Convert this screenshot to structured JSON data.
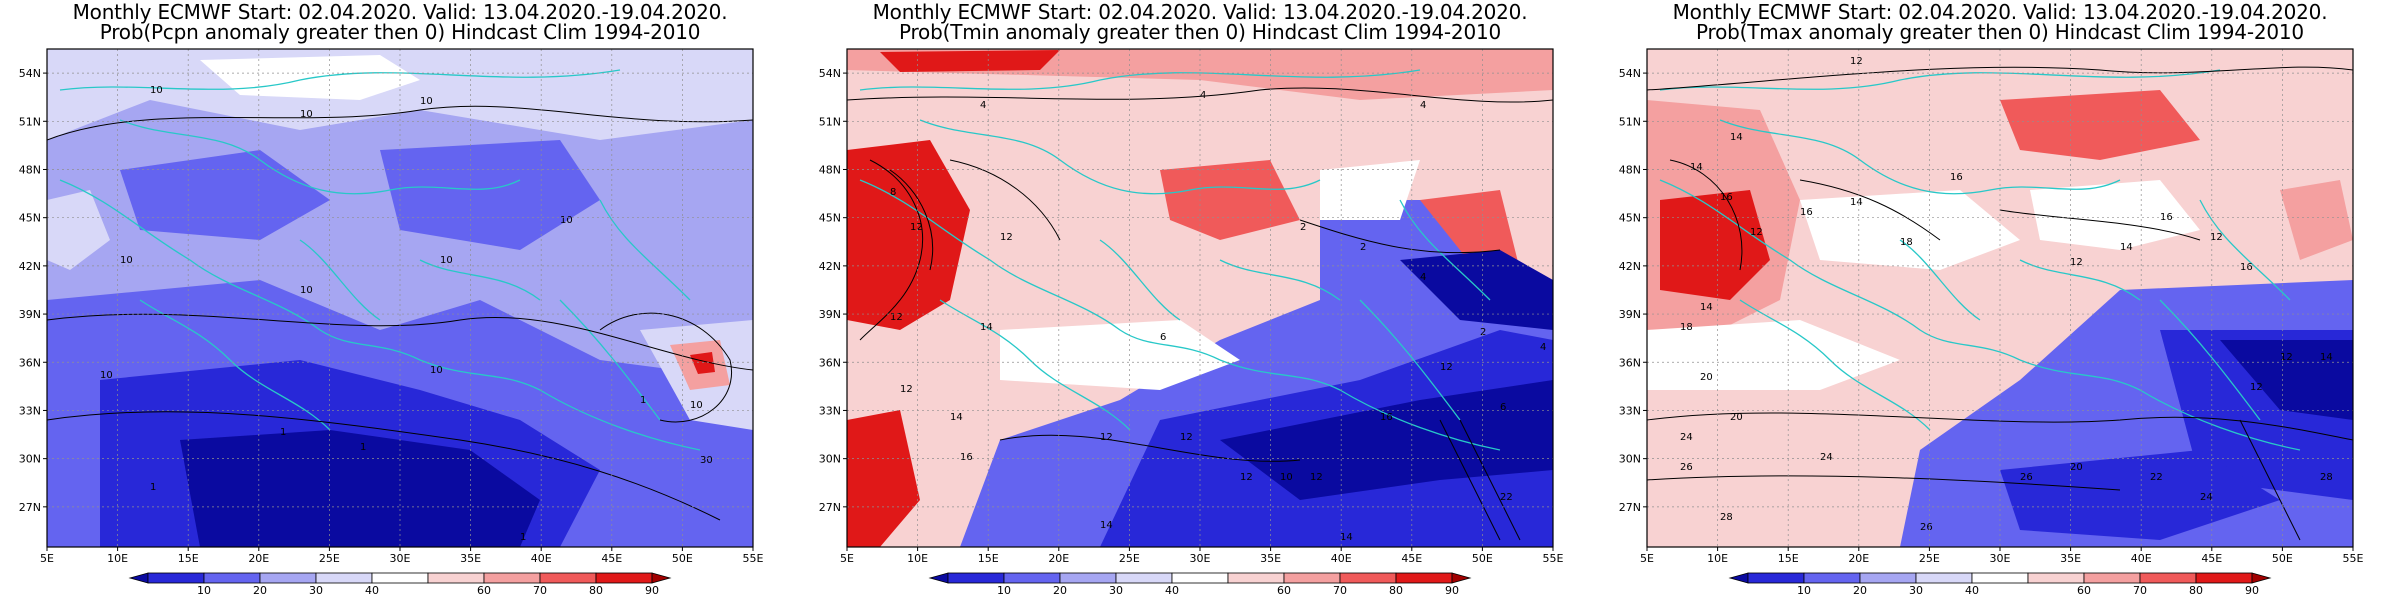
{
  "panels": [
    {
      "title_line1": "Monthly ECMWF Start: 02.04.2020. Valid: 13.04.2020.-19.04.2020.",
      "title_line2": "Prob(Pcpn anomaly greater then 0) Hindcast Clim 1994-2010",
      "variable": "Pcpn",
      "contour_labels": [
        "10",
        "10",
        "10",
        "10",
        "10",
        "10",
        "10",
        "10",
        "10",
        "1",
        "1",
        "1",
        "1",
        "1",
        "10",
        "30"
      ]
    },
    {
      "title_line1": "Monthly ECMWF Start: 02.04.2020. Valid: 13.04.2020.-19.04.2020.",
      "title_line2": "Prob(Tmin anomaly greater then 0) Hindcast Clim 1994-2010",
      "variable": "Tmin",
      "contour_labels": [
        "4",
        "4",
        "4",
        "8",
        "12",
        "12",
        "14",
        "12",
        "2",
        "2",
        "4",
        "6",
        "12",
        "14",
        "16",
        "12",
        "12",
        "12",
        "10",
        "12",
        "14",
        "14",
        "16",
        "12",
        "6",
        "22",
        "2",
        "4"
      ]
    },
    {
      "title_line1": "Monthly ECMWF Start: 02.04.2020. Valid: 13.04.2020.-19.04.2020.",
      "title_line2": "Prob(Tmax anomaly greater then 0) Hindcast Clim 1994-2010",
      "variable": "Tmax",
      "contour_labels": [
        "12",
        "14",
        "14",
        "16",
        "12",
        "16",
        "14",
        "16",
        "18",
        "12",
        "14",
        "16",
        "12",
        "16",
        "14",
        "18",
        "20",
        "20",
        "24",
        "26",
        "24",
        "26",
        "20",
        "28",
        "22",
        "24",
        "26",
        "28",
        "12",
        "12",
        "14"
      ]
    }
  ],
  "map_axes": {
    "lon_labels": [
      "5E",
      "10E",
      "15E",
      "20E",
      "25E",
      "30E",
      "35E",
      "40E",
      "45E",
      "50E",
      "55E"
    ],
    "lat_labels": [
      "54N",
      "51N",
      "48N",
      "45N",
      "42N",
      "39N",
      "36N",
      "33N",
      "30N",
      "27N"
    ],
    "lon_range": [
      5,
      55
    ],
    "lat_range": [
      24.5,
      55.5
    ]
  },
  "colorbar": {
    "tick_labels": [
      "10",
      "20",
      "30",
      "40",
      "60",
      "70",
      "80",
      "90"
    ],
    "colors": [
      "#0a0aa0",
      "#2828d8",
      "#6464f0",
      "#a6a6f2",
      "#d8d8f8",
      "#ffffff",
      "#f8d2d2",
      "#f4a0a0",
      "#f05a5a",
      "#e01818",
      "#a00000"
    ]
  }
}
